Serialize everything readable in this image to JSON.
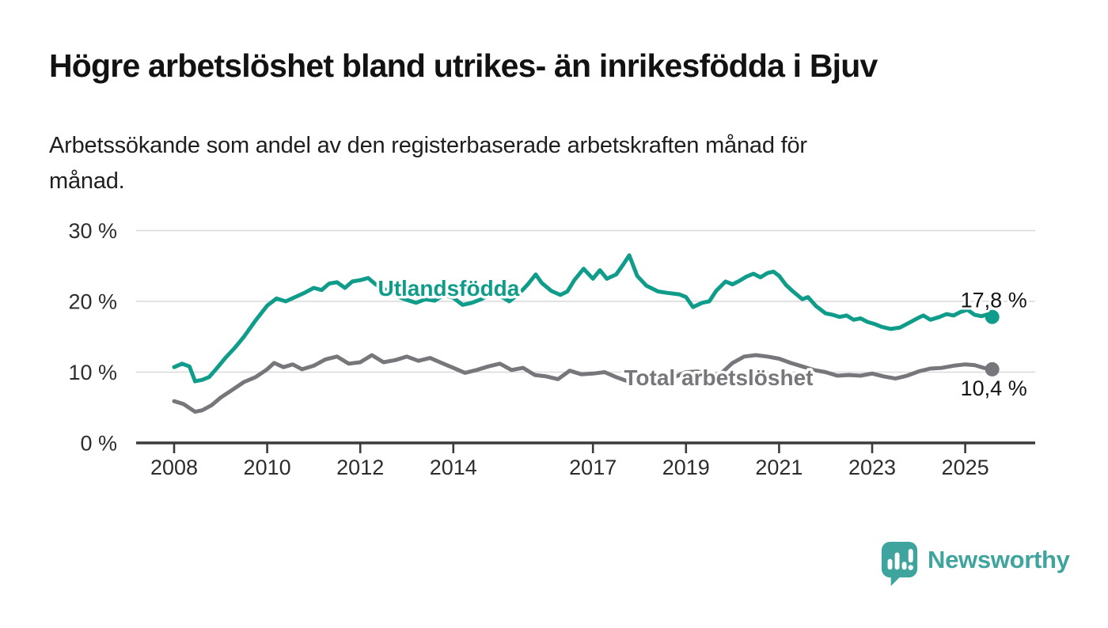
{
  "header": {
    "title": "Högre arbetslöshet bland utrikes- än inrikesfödda i Bjuv",
    "subtitle_lines": [
      "Arbetssökande som andel av den registerbaserade arbetskraften månad för",
      "månad."
    ]
  },
  "colors": {
    "accent_teal": "#109c8b",
    "series_gray": "#77777b",
    "logo_teal": "#3fa49d",
    "text_dark": "#141414",
    "tick_text": "#2d2d2d",
    "gridline": "#d9d9d9",
    "axis": "#3b3b3b"
  },
  "footer": {
    "brand": "Newsworthy"
  },
  "chart_data": {
    "type": "line",
    "title": "Högre arbetslöshet bland utrikes- än inrikesfödda i Bjuv",
    "subtitle": "Arbetssökande som andel av den registerbaserade arbetskraften månad för månad.",
    "xlabel": "",
    "ylabel": "",
    "y_unit": "%",
    "ylim": [
      0,
      31
    ],
    "xlim": [
      2007.1,
      2026.5
    ],
    "grid": true,
    "legend_position": "inline-labels",
    "y_ticks": [
      {
        "v": 0,
        "label": "0 %"
      },
      {
        "v": 10,
        "label": "10 %"
      },
      {
        "v": 20,
        "label": "20 %"
      },
      {
        "v": 30,
        "label": "30 %"
      }
    ],
    "x_ticks": [
      {
        "t": 2008,
        "label": "2008"
      },
      {
        "t": 2010,
        "label": "2010"
      },
      {
        "t": 2012,
        "label": "2012"
      },
      {
        "t": 2014,
        "label": "2014"
      },
      {
        "t": 2017,
        "label": "2017"
      },
      {
        "t": 2019,
        "label": "2019"
      },
      {
        "t": 2021,
        "label": "2021"
      },
      {
        "t": 2023,
        "label": "2023"
      },
      {
        "t": 2025,
        "label": "2025"
      }
    ],
    "series": [
      {
        "name": "Utlandsfödda",
        "color": "#109c8b",
        "end_value": 17.8,
        "end_label": "17,8 %",
        "end_label_pos": "above",
        "label_at": {
          "t": 2013.9,
          "v": 21.9
        },
        "points": [
          [
            2008.0,
            10.7
          ],
          [
            2008.17,
            11.2
          ],
          [
            2008.33,
            10.8
          ],
          [
            2008.45,
            8.7
          ],
          [
            2008.6,
            8.9
          ],
          [
            2008.75,
            9.3
          ],
          [
            2008.9,
            10.4
          ],
          [
            2009.1,
            12.0
          ],
          [
            2009.3,
            13.4
          ],
          [
            2009.5,
            15.0
          ],
          [
            2009.75,
            17.3
          ],
          [
            2010.0,
            19.4
          ],
          [
            2010.2,
            20.4
          ],
          [
            2010.4,
            20.0
          ],
          [
            2010.6,
            20.6
          ],
          [
            2010.8,
            21.2
          ],
          [
            2011.0,
            21.9
          ],
          [
            2011.17,
            21.6
          ],
          [
            2011.33,
            22.5
          ],
          [
            2011.5,
            22.7
          ],
          [
            2011.67,
            21.9
          ],
          [
            2011.83,
            22.8
          ],
          [
            2012.0,
            23.0
          ],
          [
            2012.17,
            23.3
          ],
          [
            2012.33,
            22.4
          ],
          [
            2012.5,
            21.8
          ],
          [
            2012.67,
            21.2
          ],
          [
            2012.83,
            20.6
          ],
          [
            2013.0,
            20.2
          ],
          [
            2013.2,
            19.8
          ],
          [
            2013.4,
            20.3
          ],
          [
            2013.6,
            20.1
          ],
          [
            2013.8,
            20.9
          ],
          [
            2014.0,
            20.5
          ],
          [
            2014.2,
            19.5
          ],
          [
            2014.4,
            19.8
          ],
          [
            2014.6,
            20.3
          ],
          [
            2014.8,
            21.0
          ],
          [
            2015.0,
            20.8
          ],
          [
            2015.2,
            20.0
          ],
          [
            2015.4,
            21.0
          ],
          [
            2015.6,
            22.4
          ],
          [
            2015.77,
            23.8
          ],
          [
            2015.9,
            22.6
          ],
          [
            2016.1,
            21.5
          ],
          [
            2016.3,
            20.9
          ],
          [
            2016.45,
            21.4
          ],
          [
            2016.6,
            23.0
          ],
          [
            2016.8,
            24.6
          ],
          [
            2017.0,
            23.2
          ],
          [
            2017.15,
            24.4
          ],
          [
            2017.3,
            23.2
          ],
          [
            2017.5,
            23.8
          ],
          [
            2017.65,
            25.2
          ],
          [
            2017.78,
            26.5
          ],
          [
            2017.95,
            23.6
          ],
          [
            2018.15,
            22.2
          ],
          [
            2018.4,
            21.4
          ],
          [
            2018.6,
            21.2
          ],
          [
            2018.85,
            21.0
          ],
          [
            2019.0,
            20.6
          ],
          [
            2019.15,
            19.2
          ],
          [
            2019.35,
            19.8
          ],
          [
            2019.5,
            20.0
          ],
          [
            2019.65,
            21.5
          ],
          [
            2019.85,
            22.8
          ],
          [
            2020.0,
            22.4
          ],
          [
            2020.15,
            22.9
          ],
          [
            2020.3,
            23.5
          ],
          [
            2020.45,
            23.9
          ],
          [
            2020.6,
            23.4
          ],
          [
            2020.75,
            24.0
          ],
          [
            2020.88,
            24.2
          ],
          [
            2021.0,
            23.6
          ],
          [
            2021.15,
            22.3
          ],
          [
            2021.3,
            21.4
          ],
          [
            2021.5,
            20.3
          ],
          [
            2021.62,
            20.6
          ],
          [
            2021.8,
            19.3
          ],
          [
            2022.0,
            18.3
          ],
          [
            2022.15,
            18.1
          ],
          [
            2022.3,
            17.8
          ],
          [
            2022.45,
            18.0
          ],
          [
            2022.6,
            17.4
          ],
          [
            2022.75,
            17.6
          ],
          [
            2022.9,
            17.1
          ],
          [
            2023.05,
            16.8
          ],
          [
            2023.2,
            16.4
          ],
          [
            2023.4,
            16.1
          ],
          [
            2023.6,
            16.3
          ],
          [
            2023.8,
            17.0
          ],
          [
            2024.0,
            17.7
          ],
          [
            2024.1,
            18.0
          ],
          [
            2024.25,
            17.4
          ],
          [
            2024.45,
            17.8
          ],
          [
            2024.6,
            18.2
          ],
          [
            2024.75,
            18.0
          ],
          [
            2024.9,
            18.5
          ],
          [
            2025.05,
            18.8
          ],
          [
            2025.2,
            18.1
          ],
          [
            2025.35,
            17.9
          ],
          [
            2025.45,
            18.1
          ],
          [
            2025.58,
            17.8
          ]
        ]
      },
      {
        "name": "Total arbetslöshet",
        "color": "#77777b",
        "end_value": 10.4,
        "end_label": "10,4 %",
        "end_label_pos": "below",
        "label_at": {
          "t": 2019.7,
          "v": 9.3
        },
        "points": [
          [
            2008.0,
            5.9
          ],
          [
            2008.2,
            5.5
          ],
          [
            2008.45,
            4.4
          ],
          [
            2008.6,
            4.6
          ],
          [
            2008.8,
            5.3
          ],
          [
            2009.0,
            6.4
          ],
          [
            2009.25,
            7.5
          ],
          [
            2009.5,
            8.6
          ],
          [
            2009.75,
            9.3
          ],
          [
            2010.0,
            10.4
          ],
          [
            2010.15,
            11.3
          ],
          [
            2010.35,
            10.7
          ],
          [
            2010.55,
            11.1
          ],
          [
            2010.75,
            10.4
          ],
          [
            2011.0,
            10.9
          ],
          [
            2011.25,
            11.8
          ],
          [
            2011.5,
            12.2
          ],
          [
            2011.75,
            11.2
          ],
          [
            2012.0,
            11.4
          ],
          [
            2012.25,
            12.4
          ],
          [
            2012.5,
            11.4
          ],
          [
            2012.75,
            11.7
          ],
          [
            2013.0,
            12.2
          ],
          [
            2013.25,
            11.6
          ],
          [
            2013.5,
            12.0
          ],
          [
            2013.75,
            11.3
          ],
          [
            2014.0,
            10.6
          ],
          [
            2014.25,
            9.9
          ],
          [
            2014.5,
            10.3
          ],
          [
            2014.75,
            10.8
          ],
          [
            2015.0,
            11.2
          ],
          [
            2015.25,
            10.3
          ],
          [
            2015.5,
            10.6
          ],
          [
            2015.75,
            9.6
          ],
          [
            2016.0,
            9.4
          ],
          [
            2016.25,
            9.0
          ],
          [
            2016.5,
            10.2
          ],
          [
            2016.75,
            9.7
          ],
          [
            2017.0,
            9.8
          ],
          [
            2017.25,
            10.0
          ],
          [
            2017.5,
            9.3
          ],
          [
            2017.75,
            8.7
          ],
          [
            2018.0,
            8.4
          ],
          [
            2018.25,
            8.6
          ],
          [
            2018.5,
            8.7
          ],
          [
            2018.75,
            9.3
          ],
          [
            2019.0,
            10.0
          ],
          [
            2019.25,
            10.1
          ],
          [
            2019.5,
            9.5
          ],
          [
            2019.75,
            9.8
          ],
          [
            2020.0,
            11.3
          ],
          [
            2020.25,
            12.2
          ],
          [
            2020.5,
            12.4
          ],
          [
            2020.75,
            12.2
          ],
          [
            2021.0,
            11.9
          ],
          [
            2021.25,
            11.3
          ],
          [
            2021.5,
            10.8
          ],
          [
            2021.75,
            10.3
          ],
          [
            2022.0,
            10.0
          ],
          [
            2022.25,
            9.5
          ],
          [
            2022.5,
            9.6
          ],
          [
            2022.75,
            9.5
          ],
          [
            2023.0,
            9.8
          ],
          [
            2023.25,
            9.4
          ],
          [
            2023.5,
            9.1
          ],
          [
            2023.75,
            9.5
          ],
          [
            2024.0,
            10.1
          ],
          [
            2024.25,
            10.5
          ],
          [
            2024.5,
            10.6
          ],
          [
            2024.75,
            10.9
          ],
          [
            2025.0,
            11.1
          ],
          [
            2025.2,
            11.0
          ],
          [
            2025.4,
            10.6
          ],
          [
            2025.58,
            10.4
          ]
        ]
      }
    ]
  }
}
